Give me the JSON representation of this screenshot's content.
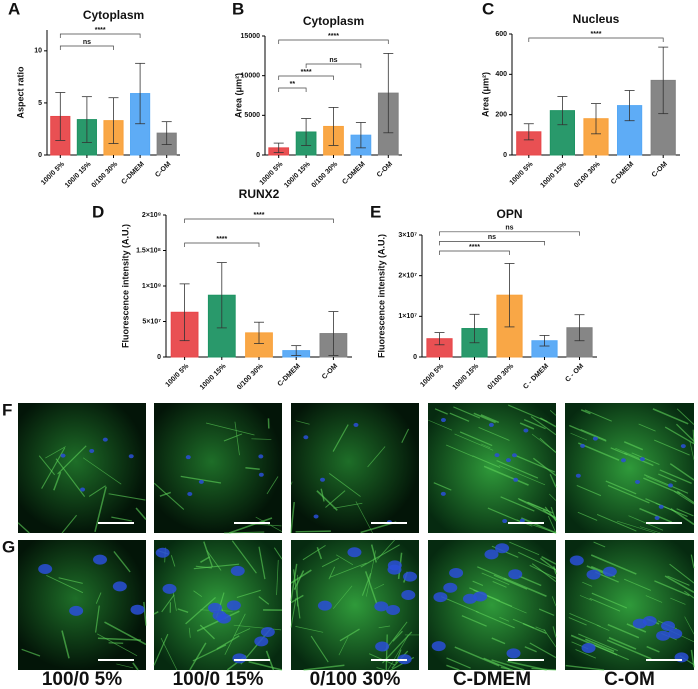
{
  "chart_data": [
    {
      "type": "bar",
      "panel": "A",
      "title": "Cytoplasm",
      "ylabel": "Aspect ratio",
      "categories": [
        "100/0 5%",
        "100/0 15%",
        "0/100 30%",
        "C-DMEM",
        "C-OM"
      ],
      "values": [
        3.7,
        3.4,
        3.3,
        5.9,
        2.1
      ],
      "errors": [
        2.3,
        2.2,
        2.2,
        2.9,
        1.1
      ],
      "colors": [
        "#e8474a",
        "#1e9463",
        "#f9a23c",
        "#55a8f5",
        "#808080"
      ],
      "ylim": [
        0,
        12
      ],
      "yticks": [
        0,
        5,
        10
      ],
      "annotations": [
        "****",
        "ns"
      ]
    },
    {
      "type": "bar",
      "panel": "B",
      "title": "Cytoplasm",
      "ylabel": "Area (μm²)",
      "categories": [
        "100/0 5%",
        "100/0 15%",
        "0/100 30%",
        "C-DMEM",
        "C-OM"
      ],
      "values": [
        900,
        2900,
        3600,
        2500,
        7800
      ],
      "errors": [
        600,
        1700,
        2400,
        1600,
        5000
      ],
      "colors": [
        "#e8474a",
        "#1e9463",
        "#f9a23c",
        "#55a8f5",
        "#808080"
      ],
      "ylim": [
        0,
        15000
      ],
      "yticks": [
        0,
        5000,
        10000,
        15000
      ],
      "annotations": [
        "****",
        "ns",
        "****",
        "**"
      ]
    },
    {
      "type": "bar",
      "panel": "C",
      "title": "Nucleus",
      "ylabel": "Area (μm²)",
      "categories": [
        "100/0 5%",
        "100/0 15%",
        "0/100 30%",
        "C-DMEM",
        "C-OM"
      ],
      "values": [
        115,
        220,
        180,
        245,
        370
      ],
      "errors": [
        40,
        70,
        75,
        75,
        165
      ],
      "colors": [
        "#e8474a",
        "#1e9463",
        "#f9a23c",
        "#55a8f5",
        "#808080"
      ],
      "ylim": [
        0,
        600
      ],
      "yticks": [
        0,
        200,
        400,
        600
      ],
      "annotations": [
        "****"
      ]
    },
    {
      "type": "bar",
      "panel": "D",
      "title": "RUNX2",
      "ylabel": "Fluorescence intensity (A.U.)",
      "categories": [
        "100/0 5%",
        "100/0 15%",
        "0/100 30%",
        "C-DMEM",
        "C-OM"
      ],
      "values": [
        63000000,
        87000000,
        34000000,
        9000000,
        33000000
      ],
      "errors": [
        40000000,
        46000000,
        15000000,
        7000000,
        31000000
      ],
      "colors": [
        "#e8474a",
        "#1e9463",
        "#f9a23c",
        "#55a8f5",
        "#808080"
      ],
      "ylim": [
        0,
        200000000
      ],
      "yticks": [
        0,
        {
          "value": 50000000,
          "label": "5×10⁷"
        },
        {
          "value": 100000000,
          "label": "1×10⁸"
        },
        {
          "value": 150000000,
          "label": "1.5×10⁸"
        },
        {
          "value": 200000000,
          "label": "2×10⁸"
        }
      ],
      "annotations": [
        "****",
        "****"
      ]
    },
    {
      "type": "bar",
      "panel": "E",
      "title": "OPN",
      "ylabel": "Fluorescence intensity (A.U.)",
      "categories": [
        "100/0 5%",
        "100/0 15%",
        "0/100 30%",
        "C - DMEM",
        "C - OM"
      ],
      "values": [
        4500000,
        7000000,
        15200000,
        4000000,
        7200000
      ],
      "errors": [
        1500000,
        3500000,
        7800000,
        1300000,
        3200000
      ],
      "colors": [
        "#e8474a",
        "#1e9463",
        "#f9a23c",
        "#55a8f5",
        "#808080"
      ],
      "ylim": [
        0,
        30000000
      ],
      "yticks": [
        0,
        {
          "value": 10000000,
          "label": "1×10⁷"
        },
        {
          "value": 20000000,
          "label": "2×10⁷"
        },
        {
          "value": 30000000,
          "label": "3×10⁷"
        }
      ],
      "annotations": [
        "****",
        "ns",
        "ns"
      ]
    }
  ],
  "images": {
    "panels": [
      "F",
      "G"
    ],
    "captions": [
      "100/0 5%",
      "100/0 15%",
      "0/100 30%",
      "C-DMEM",
      "C-OM"
    ]
  }
}
